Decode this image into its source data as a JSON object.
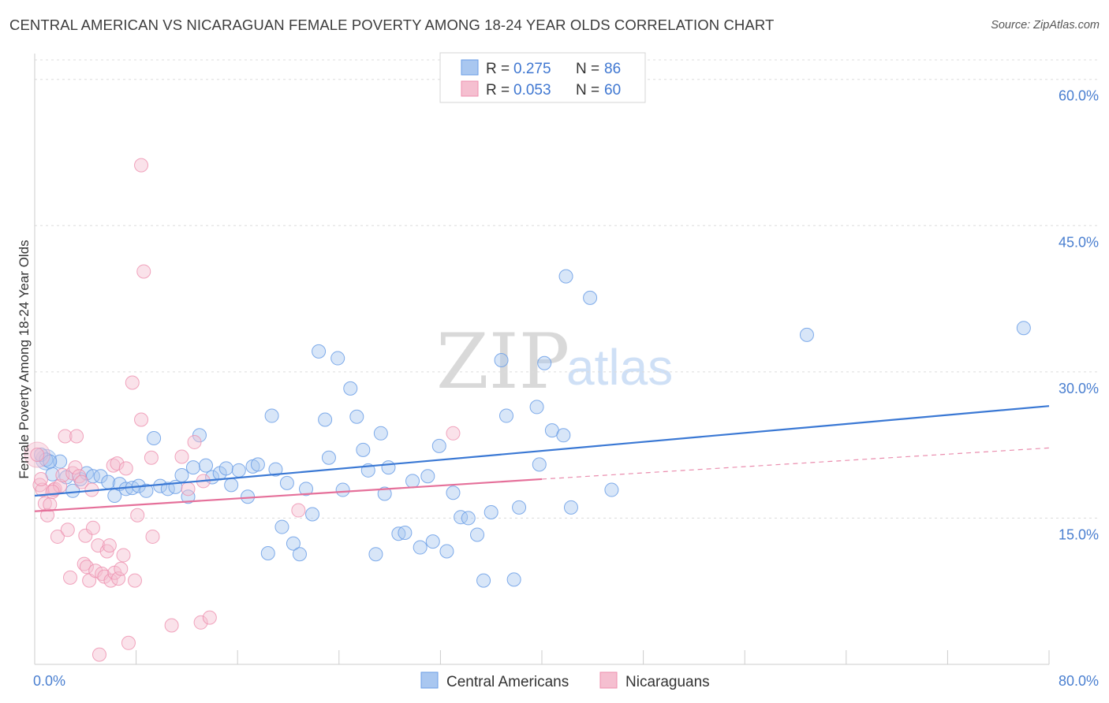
{
  "header": {
    "title": "CENTRAL AMERICAN VS NICARAGUAN FEMALE POVERTY AMONG 18-24 YEAR OLDS CORRELATION CHART",
    "source": "Source: ZipAtlas.com"
  },
  "watermark": {
    "zip": "ZIP",
    "atlas": "atlas"
  },
  "legend": {
    "rows": [
      {
        "r_label": "R =",
        "r_value": "0.275",
        "n_label": "N =",
        "n_value": "86"
      },
      {
        "r_label": "R =",
        "r_value": "0.053",
        "n_label": "N =",
        "n_value": "60"
      }
    ]
  },
  "bottom_legend": {
    "items": [
      "Central Americans",
      "Nicaraguans"
    ]
  },
  "chart_data": {
    "type": "scatter",
    "title": "CENTRAL AMERICAN VS NICARAGUAN FEMALE POVERTY AMONG 18-24 YEAR OLDS CORRELATION CHART",
    "xlabel": "",
    "ylabel": "Female Poverty Among 18-24 Year Olds",
    "xlim": [
      0,
      80
    ],
    "ylim": [
      0,
      62
    ],
    "x_tick_labels": [
      "0.0%",
      "80.0%"
    ],
    "y_ticks": [
      15,
      30,
      45,
      60
    ],
    "y_tick_labels": [
      "15.0%",
      "30.0%",
      "45.0%",
      "60.0%"
    ],
    "grid": true,
    "legend_position": "top-center",
    "colors": {
      "central_americans": "#6a9ee6",
      "central_americans_fill": "#a9c7f0",
      "nicaraguans": "#ee8fae",
      "nicaraguans_fill": "#f5bfd0",
      "trend_blue": "#3a78d4",
      "trend_pink": "#e5709a"
    },
    "series": [
      {
        "name": "Central Americans",
        "trend": {
          "x": [
            0,
            80
          ],
          "y": [
            17.3,
            26.5
          ],
          "style": "solid"
        },
        "points": [
          [
            0.5,
            21.5
          ],
          [
            0.9,
            21.0
          ],
          [
            1.4,
            19.5
          ],
          [
            2.0,
            20.8
          ],
          [
            2.5,
            19.2
          ],
          [
            3.0,
            17.8
          ],
          [
            3.6,
            19.0
          ],
          [
            4.1,
            19.6
          ],
          [
            4.6,
            19.3
          ],
          [
            5.2,
            19.3
          ],
          [
            5.8,
            18.7
          ],
          [
            6.3,
            17.3
          ],
          [
            6.7,
            18.5
          ],
          [
            7.2,
            18.0
          ],
          [
            7.7,
            18.1
          ],
          [
            8.2,
            18.3
          ],
          [
            8.8,
            17.8
          ],
          [
            9.4,
            23.2
          ],
          [
            9.9,
            18.3
          ],
          [
            10.5,
            18.0
          ],
          [
            11.1,
            18.2
          ],
          [
            11.6,
            19.4
          ],
          [
            12.1,
            17.2
          ],
          [
            12.5,
            20.2
          ],
          [
            13.0,
            23.5
          ],
          [
            13.5,
            20.4
          ],
          [
            14.0,
            19.2
          ],
          [
            14.6,
            19.6
          ],
          [
            15.1,
            20.1
          ],
          [
            15.5,
            18.4
          ],
          [
            16.1,
            19.9
          ],
          [
            16.8,
            17.2
          ],
          [
            17.2,
            20.3
          ],
          [
            17.6,
            20.5
          ],
          [
            18.4,
            11.4
          ],
          [
            18.7,
            25.5
          ],
          [
            19.0,
            20.0
          ],
          [
            19.5,
            14.1
          ],
          [
            19.9,
            18.6
          ],
          [
            20.4,
            12.4
          ],
          [
            20.9,
            11.3
          ],
          [
            21.4,
            18.0
          ],
          [
            21.9,
            15.4
          ],
          [
            22.4,
            32.1
          ],
          [
            22.9,
            25.1
          ],
          [
            23.2,
            21.2
          ],
          [
            23.9,
            31.4
          ],
          [
            24.3,
            17.9
          ],
          [
            24.9,
            28.3
          ],
          [
            25.4,
            25.4
          ],
          [
            25.9,
            22.0
          ],
          [
            26.3,
            19.9
          ],
          [
            26.9,
            11.3
          ],
          [
            27.3,
            23.7
          ],
          [
            27.6,
            17.5
          ],
          [
            27.9,
            20.2
          ],
          [
            28.7,
            13.4
          ],
          [
            29.2,
            13.5
          ],
          [
            29.8,
            18.8
          ],
          [
            30.4,
            12.0
          ],
          [
            31.0,
            19.3
          ],
          [
            31.4,
            12.6
          ],
          [
            31.9,
            22.4
          ],
          [
            32.5,
            11.6
          ],
          [
            33.0,
            17.6
          ],
          [
            33.6,
            15.1
          ],
          [
            34.2,
            15.0
          ],
          [
            34.9,
            13.3
          ],
          [
            35.4,
            8.6
          ],
          [
            36.0,
            15.6
          ],
          [
            36.8,
            31.2
          ],
          [
            37.2,
            25.5
          ],
          [
            37.8,
            8.7
          ],
          [
            38.2,
            16.1
          ],
          [
            39.6,
            26.4
          ],
          [
            39.8,
            20.5
          ],
          [
            40.2,
            30.9
          ],
          [
            40.8,
            24.0
          ],
          [
            41.7,
            23.5
          ],
          [
            41.9,
            39.8
          ],
          [
            42.3,
            16.1
          ],
          [
            43.8,
            37.6
          ],
          [
            45.5,
            17.9
          ],
          [
            60.9,
            33.8
          ],
          [
            78.0,
            34.5
          ],
          [
            1.2,
            20.8
          ]
        ]
      },
      {
        "name": "Nicaraguans",
        "trend": {
          "x": [
            0,
            40
          ],
          "y": [
            15.7,
            19.0
          ],
          "style": "solid",
          "extension": {
            "x": [
              40,
              80
            ],
            "y": [
              19.0,
              22.2
            ],
            "style": "dashed"
          }
        },
        "points": [
          [
            0.2,
            21.5
          ],
          [
            0.4,
            18.4
          ],
          [
            0.6,
            17.9
          ],
          [
            0.8,
            16.5
          ],
          [
            1.0,
            15.3
          ],
          [
            1.2,
            16.4
          ],
          [
            1.5,
            17.9
          ],
          [
            1.6,
            18.0
          ],
          [
            1.8,
            13.1
          ],
          [
            2.0,
            18.3
          ],
          [
            2.2,
            19.4
          ],
          [
            2.4,
            23.4
          ],
          [
            2.6,
            13.8
          ],
          [
            2.8,
            8.9
          ],
          [
            3.0,
            19.6
          ],
          [
            3.2,
            20.2
          ],
          [
            3.3,
            23.4
          ],
          [
            3.5,
            19.3
          ],
          [
            3.7,
            18.7
          ],
          [
            3.9,
            10.3
          ],
          [
            4.0,
            13.2
          ],
          [
            4.1,
            10.0
          ],
          [
            4.3,
            8.6
          ],
          [
            4.5,
            17.9
          ],
          [
            4.6,
            14.0
          ],
          [
            4.8,
            9.6
          ],
          [
            5.0,
            12.2
          ],
          [
            5.1,
            1.0
          ],
          [
            5.3,
            9.3
          ],
          [
            5.5,
            9.0
          ],
          [
            5.7,
            11.6
          ],
          [
            5.9,
            12.2
          ],
          [
            6.0,
            8.6
          ],
          [
            6.2,
            20.4
          ],
          [
            6.3,
            9.4
          ],
          [
            6.5,
            20.6
          ],
          [
            6.6,
            8.8
          ],
          [
            6.8,
            9.8
          ],
          [
            7.0,
            11.2
          ],
          [
            7.2,
            20.1
          ],
          [
            7.4,
            2.2
          ],
          [
            7.7,
            28.9
          ],
          [
            7.9,
            8.6
          ],
          [
            8.1,
            15.3
          ],
          [
            8.4,
            51.2
          ],
          [
            8.4,
            25.1
          ],
          [
            8.6,
            40.3
          ],
          [
            9.2,
            21.2
          ],
          [
            9.3,
            13.1
          ],
          [
            10.8,
            4.0
          ],
          [
            11.6,
            21.3
          ],
          [
            12.1,
            18.0
          ],
          [
            12.6,
            22.8
          ],
          [
            13.1,
            4.3
          ],
          [
            13.3,
            18.8
          ],
          [
            13.8,
            4.8
          ],
          [
            20.8,
            15.8
          ],
          [
            33.0,
            23.7
          ],
          [
            0.5,
            19.0
          ],
          [
            1.4,
            17.7
          ]
        ]
      }
    ]
  }
}
